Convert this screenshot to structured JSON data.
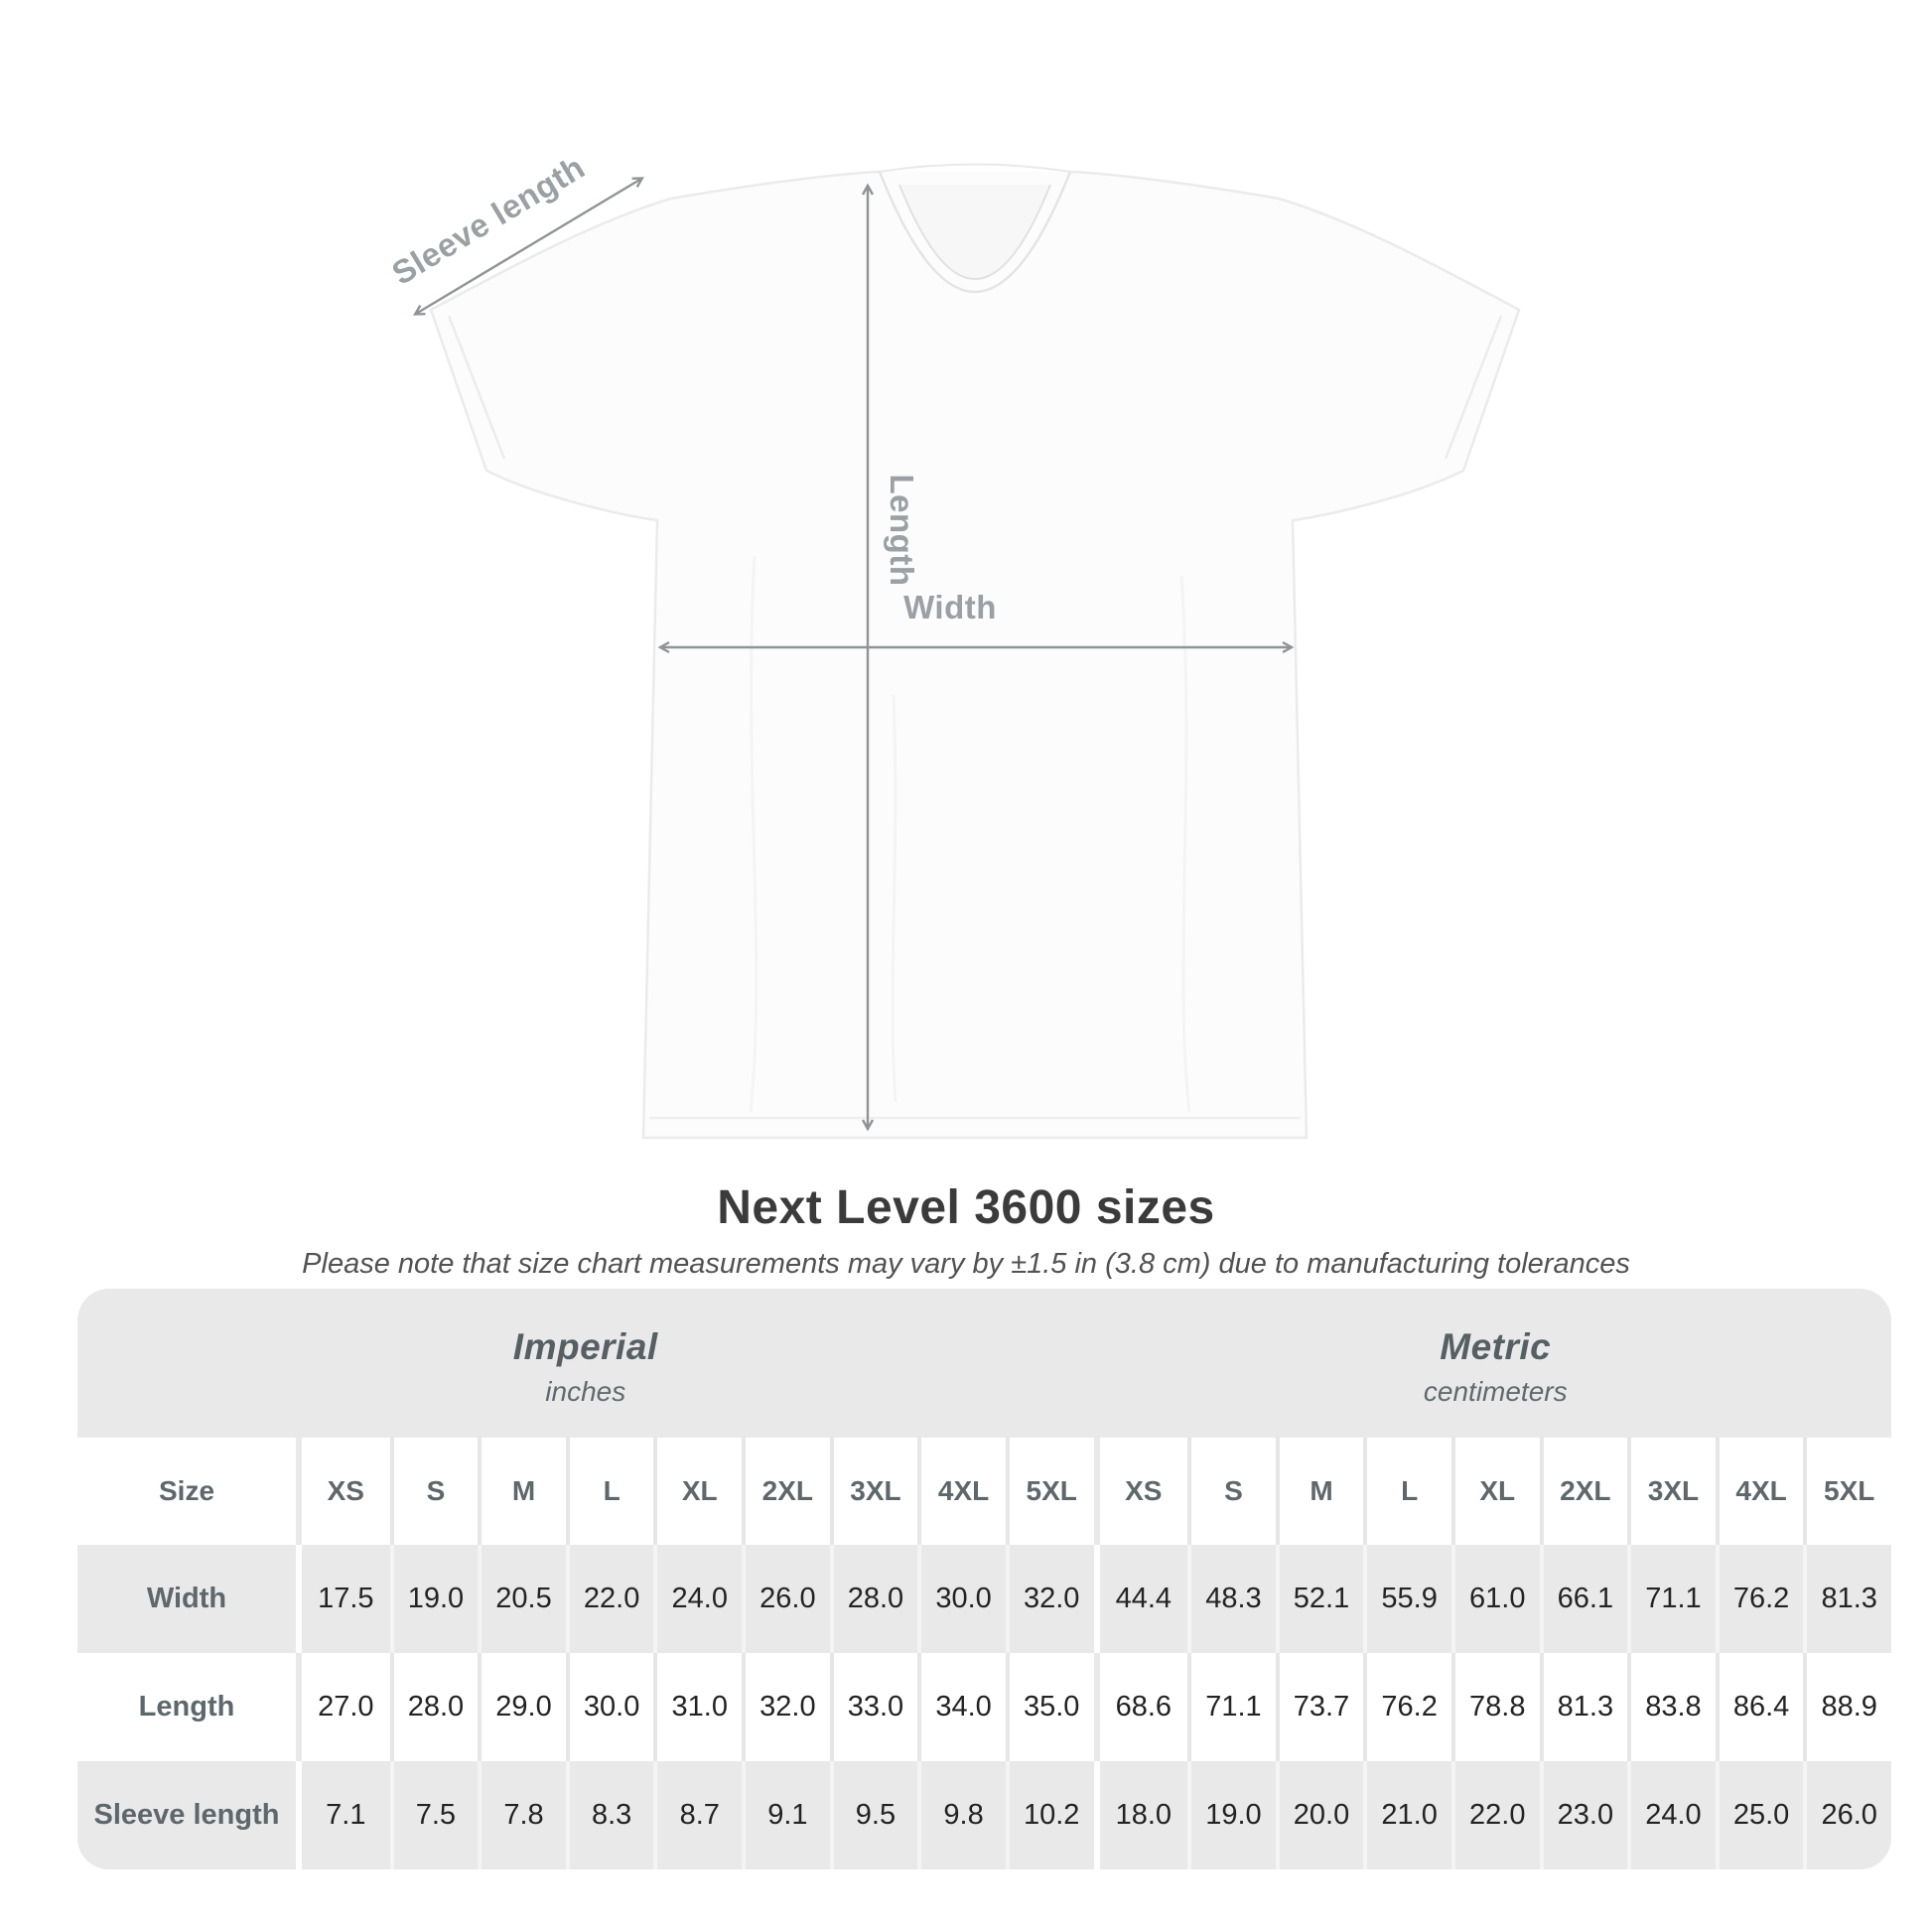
{
  "diagram": {
    "annotations": {
      "sleeve_length": "Sleeve length",
      "length": "Length",
      "width": "Width"
    },
    "line_color": "#8f9496",
    "label_color": "#9aa0a3",
    "shirt_color": "#fcfcfc"
  },
  "heading": {
    "title": "Next Level 3600 sizes",
    "subtitle": "Please note that size chart measurements may vary by ±1.5 in (3.8 cm) due to manufacturing tolerances"
  },
  "table": {
    "background_color": "#e9e9e9",
    "size_header_label": "Size",
    "sections": [
      {
        "title": "Imperial",
        "unit": "inches"
      },
      {
        "title": "Metric",
        "unit": "centimeters"
      }
    ],
    "sizes": [
      "XS",
      "S",
      "M",
      "L",
      "XL",
      "2XL",
      "3XL",
      "4XL",
      "5XL"
    ],
    "rows": [
      {
        "label": "Width",
        "imperial": [
          "17.5",
          "19.0",
          "20.5",
          "22.0",
          "24.0",
          "26.0",
          "28.0",
          "30.0",
          "32.0"
        ],
        "metric": [
          "44.4",
          "48.3",
          "52.1",
          "55.9",
          "61.0",
          "66.1",
          "71.1",
          "76.2",
          "81.3"
        ]
      },
      {
        "label": "Length",
        "imperial": [
          "27.0",
          "28.0",
          "29.0",
          "30.0",
          "31.0",
          "32.0",
          "33.0",
          "34.0",
          "35.0"
        ],
        "metric": [
          "68.6",
          "71.1",
          "73.7",
          "76.2",
          "78.8",
          "81.3",
          "83.8",
          "86.4",
          "88.9"
        ]
      },
      {
        "label": "Sleeve length",
        "imperial": [
          "7.1",
          "7.5",
          "7.8",
          "8.3",
          "8.7",
          "9.1",
          "9.5",
          "9.8",
          "10.2"
        ],
        "metric": [
          "18.0",
          "19.0",
          "20.0",
          "21.0",
          "22.0",
          "23.0",
          "24.0",
          "25.0",
          "26.0"
        ]
      }
    ]
  }
}
